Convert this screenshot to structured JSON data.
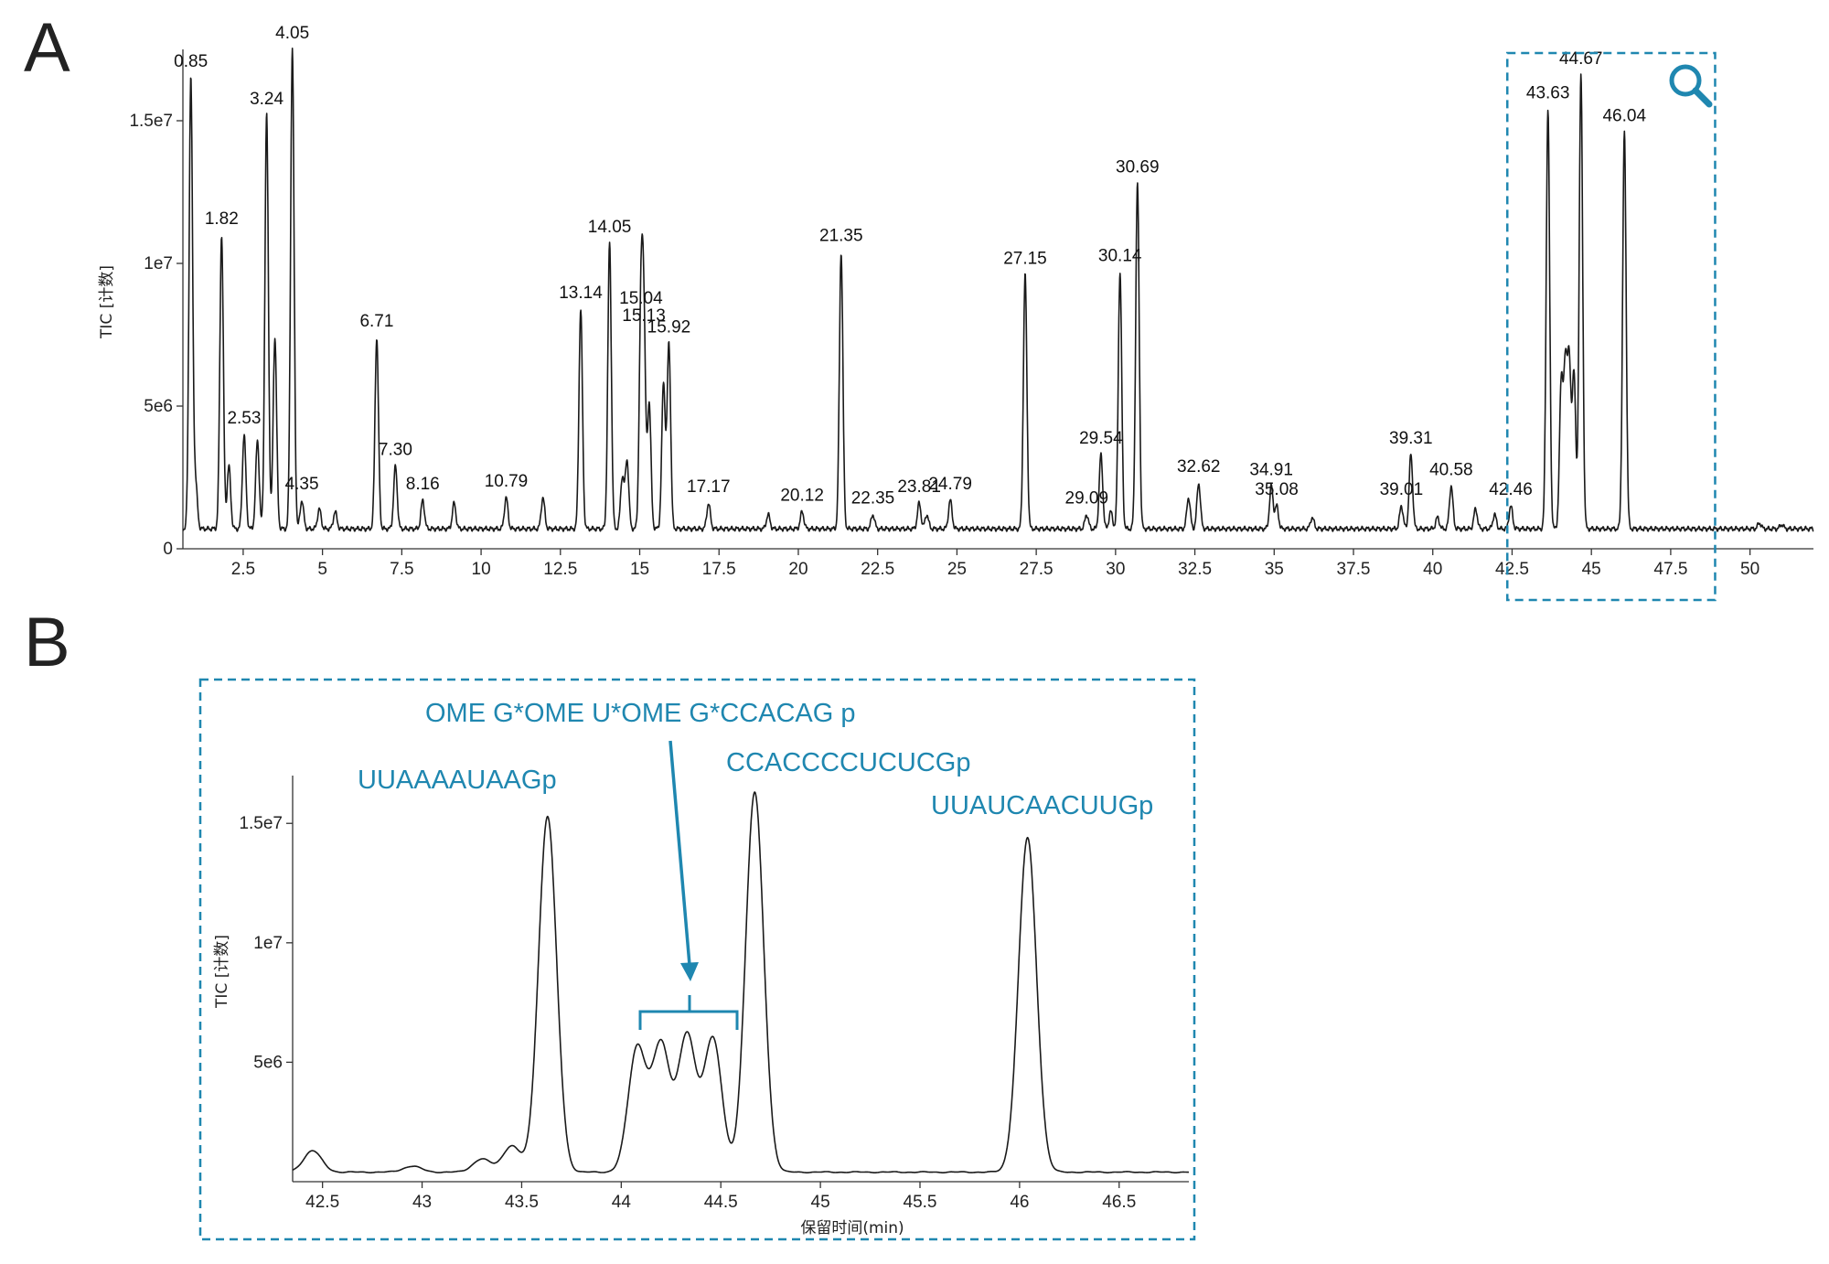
{
  "colors": {
    "accent": "#1f87b0",
    "trace": "#1a1a1a",
    "axis": "#333333"
  },
  "panels": {
    "a_letter": "A",
    "b_letter": "B"
  },
  "icon": {
    "zoom": "magnifier-icon"
  },
  "chart_data": [
    {
      "panel": "A",
      "type": "line",
      "ylabel": "TIC [计数]",
      "xlabel": "",
      "xlim": [
        0.6,
        52
      ],
      "ylim": [
        0,
        17500000
      ],
      "xticks": [
        2.5,
        5,
        7.5,
        10,
        12.5,
        15,
        17.5,
        20,
        22.5,
        25,
        27.5,
        30,
        32.5,
        35,
        37.5,
        40,
        42.5,
        45,
        47.5,
        50
      ],
      "xtick_labels": [
        "2.5",
        "5",
        "7.5",
        "10",
        "12.5",
        "15",
        "17.5",
        "20",
        "22.5",
        "25",
        "27.5",
        "30",
        "32.5",
        "35",
        "37.5",
        "40",
        "42.5",
        "45",
        "47.5",
        "50"
      ],
      "yticks": [
        0,
        5000000,
        10000000,
        15000000
      ],
      "ytick_labels": [
        "0",
        "5e6",
        "1e7",
        "1.5e7"
      ],
      "baseline": 700000,
      "peaks": [
        {
          "x": 0.85,
          "y": 16500000,
          "label": "0.85"
        },
        {
          "x": 1.0,
          "y": 2300000,
          "label": ""
        },
        {
          "x": 1.82,
          "y": 11000000,
          "label": "1.82"
        },
        {
          "x": 2.05,
          "y": 2900000,
          "label": ""
        },
        {
          "x": 2.53,
          "y": 4000000,
          "label": "2.53"
        },
        {
          "x": 2.95,
          "y": 3800000,
          "label": ""
        },
        {
          "x": 3.24,
          "y": 15200000,
          "label": "3.24"
        },
        {
          "x": 3.5,
          "y": 7400000,
          "label": ""
        },
        {
          "x": 4.05,
          "y": 17500000,
          "label": "4.05"
        },
        {
          "x": 4.35,
          "y": 1700000,
          "label": "4.35"
        },
        {
          "x": 4.9,
          "y": 1400000,
          "label": ""
        },
        {
          "x": 5.4,
          "y": 1300000,
          "label": ""
        },
        {
          "x": 6.71,
          "y": 7400000,
          "label": "6.71"
        },
        {
          "x": 7.3,
          "y": 2900000,
          "label": "7.30"
        },
        {
          "x": 8.16,
          "y": 1700000,
          "label": "8.16"
        },
        {
          "x": 9.15,
          "y": 1600000,
          "label": ""
        },
        {
          "x": 10.79,
          "y": 1800000,
          "label": "10.79"
        },
        {
          "x": 11.95,
          "y": 1800000,
          "label": ""
        },
        {
          "x": 13.14,
          "y": 8400000,
          "label": "13.14"
        },
        {
          "x": 14.05,
          "y": 10700000,
          "label": "14.05"
        },
        {
          "x": 14.45,
          "y": 2500000,
          "label": ""
        },
        {
          "x": 14.6,
          "y": 3100000,
          "label": ""
        },
        {
          "x": 15.04,
          "y": 8200000,
          "label": "15.04"
        },
        {
          "x": 15.13,
          "y": 7600000,
          "label": "15.13"
        },
        {
          "x": 15.3,
          "y": 5100000,
          "label": ""
        },
        {
          "x": 15.75,
          "y": 5800000,
          "label": ""
        },
        {
          "x": 15.92,
          "y": 7200000,
          "label": "15.92"
        },
        {
          "x": 17.17,
          "y": 1600000,
          "label": "17.17"
        },
        {
          "x": 19.05,
          "y": 1200000,
          "label": ""
        },
        {
          "x": 20.12,
          "y": 1300000,
          "label": "20.12"
        },
        {
          "x": 21.35,
          "y": 10400000,
          "label": "21.35"
        },
        {
          "x": 22.35,
          "y": 1200000,
          "label": "22.35"
        },
        {
          "x": 23.81,
          "y": 1600000,
          "label": "23.81"
        },
        {
          "x": 24.05,
          "y": 1200000,
          "label": ""
        },
        {
          "x": 24.79,
          "y": 1700000,
          "label": "24.79"
        },
        {
          "x": 27.15,
          "y": 9600000,
          "label": "27.15"
        },
        {
          "x": 29.09,
          "y": 1200000,
          "label": "29.09"
        },
        {
          "x": 29.54,
          "y": 3300000,
          "label": "29.54"
        },
        {
          "x": 29.85,
          "y": 1300000,
          "label": ""
        },
        {
          "x": 30.14,
          "y": 9700000,
          "label": "30.14"
        },
        {
          "x": 30.69,
          "y": 12800000,
          "label": "30.69"
        },
        {
          "x": 32.3,
          "y": 1800000,
          "label": ""
        },
        {
          "x": 32.62,
          "y": 2300000,
          "label": "32.62"
        },
        {
          "x": 34.91,
          "y": 2200000,
          "label": "34.91"
        },
        {
          "x": 35.08,
          "y": 1500000,
          "label": "35.08"
        },
        {
          "x": 36.2,
          "y": 1100000,
          "label": ""
        },
        {
          "x": 39.01,
          "y": 1500000,
          "label": "39.01"
        },
        {
          "x": 39.31,
          "y": 3300000,
          "label": "39.31"
        },
        {
          "x": 40.15,
          "y": 1100000,
          "label": ""
        },
        {
          "x": 40.58,
          "y": 2200000,
          "label": "40.58"
        },
        {
          "x": 41.35,
          "y": 1400000,
          "label": ""
        },
        {
          "x": 41.95,
          "y": 1200000,
          "label": ""
        },
        {
          "x": 42.46,
          "y": 1500000,
          "label": "42.46"
        },
        {
          "x": 43.63,
          "y": 15400000,
          "label": "43.63"
        },
        {
          "x": 44.05,
          "y": 5800000,
          "label": ""
        },
        {
          "x": 44.18,
          "y": 6100000,
          "label": ""
        },
        {
          "x": 44.3,
          "y": 6400000,
          "label": ""
        },
        {
          "x": 44.45,
          "y": 6200000,
          "label": ""
        },
        {
          "x": 44.67,
          "y": 16600000,
          "label": "44.67"
        },
        {
          "x": 46.04,
          "y": 14600000,
          "label": "46.04"
        },
        {
          "x": 50.3,
          "y": 900000,
          "label": ""
        },
        {
          "x": 51.0,
          "y": 850000,
          "label": ""
        }
      ],
      "zoom_region": [
        42.35,
        48.9
      ]
    },
    {
      "panel": "B",
      "type": "line",
      "xlabel": "保留时间(min)",
      "ylabel": "TIC [计数]",
      "xlim": [
        42.35,
        46.85
      ],
      "ylim": [
        0,
        17000000
      ],
      "xticks": [
        42.5,
        43,
        43.5,
        44,
        44.5,
        45,
        45.5,
        46,
        46.5
      ],
      "xtick_labels": [
        "42.5",
        "43",
        "43.5",
        "44",
        "44.5",
        "45",
        "45.5",
        "46",
        "46.5"
      ],
      "yticks": [
        5000000,
        10000000,
        15000000
      ],
      "ytick_labels": [
        "5e6",
        "1e7",
        "1.5e7"
      ],
      "baseline": 400000,
      "peaks": [
        {
          "x": 42.45,
          "y": 1300000
        },
        {
          "x": 42.95,
          "y": 650000
        },
        {
          "x": 43.3,
          "y": 950000
        },
        {
          "x": 43.45,
          "y": 1500000
        },
        {
          "x": 43.63,
          "y": 15300000
        },
        {
          "x": 44.08,
          "y": 5600000
        },
        {
          "x": 44.2,
          "y": 5700000
        },
        {
          "x": 44.33,
          "y": 6100000
        },
        {
          "x": 44.46,
          "y": 6000000
        },
        {
          "x": 44.67,
          "y": 16300000
        },
        {
          "x": 46.04,
          "y": 14400000
        }
      ],
      "sequence_annotations": [
        {
          "text": "UUAAAAUAAGp",
          "peak_x": 43.63
        },
        {
          "text": "OME G*OME U*OME G*CCACAG p",
          "peak_x": 44.3
        },
        {
          "text": "CCACCCCUCUCGp",
          "peak_x": 44.67
        },
        {
          "text": "UUAUCAACUUGp",
          "peak_x": 46.04
        }
      ]
    }
  ]
}
